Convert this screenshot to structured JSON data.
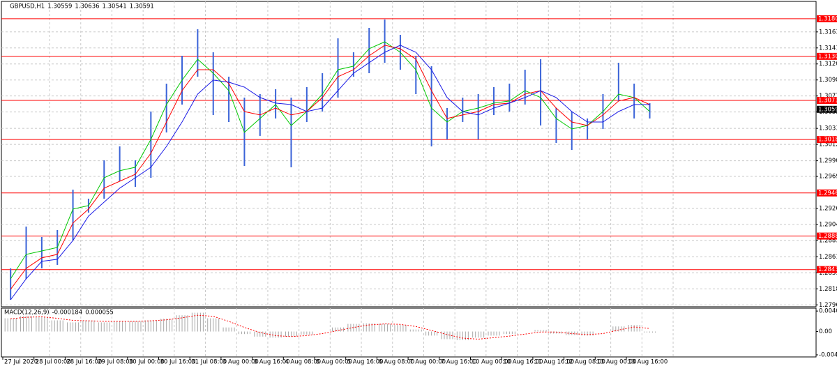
{
  "chart_data": [
    {
      "type": "range",
      "title": "GBPUSD,H1",
      "header_values": [
        1.30559,
        1.30636,
        1.30541,
        1.30591
      ],
      "categories": [
        "27 Jul 2020",
        null,
        "28 Jul 00:00",
        null,
        "28 Jul 16:00",
        null,
        "29 Jul 08:00",
        null,
        "30 Jul 00:00",
        null,
        "30 Jul 16:00",
        null,
        "31 Jul 08:00",
        null,
        "3 Aug 00:00",
        null,
        "3 Aug 16:00",
        null,
        "4 Aug 08:00",
        null,
        "5 Aug 00:00",
        null,
        "5 Aug 16:00",
        null,
        "6 Aug 08:00",
        null,
        "7 Aug 00:00",
        null,
        "7 Aug 16:00",
        null,
        "10 Aug 00:00",
        null,
        "10 Aug 16:00",
        null,
        "11 Aug 16:00",
        null,
        "12 Aug 08:00",
        null,
        "13 Aug 00:00",
        null,
        "13 Aug 16:00",
        null
      ],
      "bars": {
        "color": "#3a63d8",
        "high": [
          1.28455,
          1.29017,
          1.28876,
          1.2897,
          1.29513,
          1.29391,
          1.29906,
          1.30093,
          1.29906,
          1.30561,
          1.30936,
          1.3131,
          1.31666,
          1.31357,
          1.31029,
          1.30748,
          1.30795,
          1.30861,
          1.30748,
          1.30889,
          1.31076,
          1.31544,
          1.31357,
          1.31684,
          1.31797,
          1.31591,
          1.3131,
          1.3117,
          1.30608,
          1.30748,
          1.30795,
          1.30889,
          1.30936,
          1.31123,
          1.31263,
          1.30608,
          1.30561,
          1.30468,
          1.30795,
          1.31216,
          1.30936,
          1.30673
        ],
        "low": [
          1.28034,
          1.28315,
          1.28455,
          1.28502,
          1.2883,
          1.29204,
          1.29391,
          1.29625,
          1.2955,
          1.29672,
          1.3028,
          1.30655,
          1.31029,
          1.30514,
          1.30421,
          1.29831,
          1.30234,
          1.30468,
          1.29812,
          1.30421,
          1.30561,
          1.30748,
          1.31029,
          1.31076,
          1.31216,
          1.31123,
          1.30795,
          1.30093,
          1.30187,
          1.30421,
          1.30187,
          1.30514,
          1.30561,
          1.30655,
          1.30374,
          1.3014,
          1.30046,
          1.30187,
          1.30327,
          1.30702,
          1.30468,
          1.30468
        ]
      },
      "lines": [
        {
          "color": "#00c800",
          "values": [
            1.28315,
            1.28643,
            1.28689,
            1.28736,
            1.29251,
            1.29298,
            1.29672,
            1.29766,
            1.29813,
            1.30187,
            1.30655,
            1.30983,
            1.31263,
            1.31076,
            1.30842,
            1.30281,
            1.30468,
            1.30655,
            1.30374,
            1.30561,
            1.30795,
            1.31123,
            1.3117,
            1.31404,
            1.31497,
            1.31357,
            1.31123,
            1.30608,
            1.30421,
            1.30561,
            1.30608,
            1.30674,
            1.30702,
            1.30842,
            1.30749,
            1.30468,
            1.30327,
            1.30374,
            1.30561,
            1.30795,
            1.30749,
            1.30561
          ]
        },
        {
          "color": "#ff0000",
          "values": [
            1.28175,
            1.28455,
            1.28596,
            1.28643,
            1.29064,
            1.29251,
            1.29532,
            1.29625,
            1.29719,
            1.3,
            1.30421,
            1.30842,
            1.31123,
            1.31123,
            1.30936,
            1.30561,
            1.30515,
            1.30608,
            1.30515,
            1.30561,
            1.30749,
            1.31029,
            1.31123,
            1.3131,
            1.31451,
            1.31404,
            1.31263,
            1.30842,
            1.30468,
            1.30515,
            1.30561,
            1.30655,
            1.30674,
            1.30795,
            1.30842,
            1.30608,
            1.30421,
            1.30374,
            1.30515,
            1.30702,
            1.30749,
            1.30655
          ]
        },
        {
          "color": "#1a1ae6",
          "values": [
            1.28034,
            1.28315,
            1.28549,
            1.28577,
            1.2883,
            1.29157,
            1.29345,
            1.29532,
            1.29672,
            1.29813,
            1.30093,
            1.30421,
            1.30795,
            1.30983,
            1.30955,
            1.30889,
            1.30749,
            1.30674,
            1.30655,
            1.30561,
            1.30608,
            1.30842,
            1.31076,
            1.31217,
            1.31357,
            1.31451,
            1.31357,
            1.31123,
            1.30749,
            1.30561,
            1.30515,
            1.30608,
            1.30674,
            1.30749,
            1.30842,
            1.30749,
            1.30561,
            1.30421,
            1.30421,
            1.30561,
            1.30655,
            1.30655
          ]
        }
      ],
      "ylim": [
        1.2794,
        1.3204
      ],
      "yticks": [
        1.27965,
        {
          "value": 1.2818,
          "label": "1.28180"
        },
        1.28395,
        {
          "value": 1.2861,
          "label": "1.28610"
        },
        {
          "value": 1.2883,
          "label": "1.28830"
        },
        1.29045,
        {
          "value": 1.2926,
          "label": "1.29260"
        },
        {
          "value": 1.2969,
          "label": "1.29690"
        },
        {
          "value": 1.299,
          "label": "1.29900"
        },
        {
          "value": 1.3012,
          "label": "1.30120"
        },
        1.30335,
        1.30555,
        {
          "value": 1.3077,
          "label": "1.30770"
        },
        1.30985,
        {
          "value": 1.312,
          "label": "1.31200"
        },
        1.31415,
        {
          "value": 1.3163,
          "label": "1.31630"
        }
      ],
      "levels": [
        1.31807,
        1.31302,
        1.30711,
        1.30185,
        1.29468,
        1.28889,
        1.28439
      ],
      "level_color": "#ff0000",
      "current_price": 1.30591,
      "grid": true
    },
    {
      "type": "macd",
      "title": "MACD(12,26,9)",
      "header_values": [
        -0.000184,
        5.5e-05
      ],
      "histogram": {
        "color": "#a6a6a6",
        "values": [
          0.0026,
          0.003,
          0.0029,
          0.0022,
          0.0018,
          0.0022,
          0.0018,
          0.002,
          0.002,
          0.0022,
          0.0025,
          0.0032,
          0.0037,
          0.0026,
          0.0008,
          -0.0005,
          -0.001,
          -0.0012,
          -0.001,
          -0.0006,
          0.0,
          0.0008,
          0.0015,
          0.0016,
          0.0015,
          0.0013,
          0.0004,
          -0.0008,
          -0.0015,
          -0.0017,
          -0.0012,
          -0.0008,
          -0.0005,
          0.0,
          0.0003,
          -0.0004,
          -0.0007,
          -0.0008,
          0.0,
          0.001,
          0.0013,
          -0.0002
        ]
      },
      "signal": {
        "color": "#ff0000",
        "values": [
          0.0025,
          0.0028,
          0.0029,
          0.0026,
          0.0022,
          0.0021,
          0.002,
          0.002,
          0.002,
          0.0021,
          0.0023,
          0.0027,
          0.0032,
          0.003,
          0.002,
          0.0008,
          -0.0002,
          -0.0008,
          -0.001,
          -0.0008,
          -0.0004,
          0.0002,
          0.0008,
          0.0013,
          0.0015,
          0.0014,
          0.001,
          0.0002,
          -0.0006,
          -0.0013,
          -0.0015,
          -0.0012,
          -0.0009,
          -0.0005,
          -0.0001,
          -0.0001,
          -0.0004,
          -0.0006,
          -0.0004,
          0.0003,
          0.0009,
          0.0006
        ]
      },
      "ylim": [
        -0.005,
        0.0046
      ],
      "yticks": [
        0.00403,
        {
          "value": 0,
          "label": "0.00"
        },
        -0.00459
      ]
    }
  ]
}
